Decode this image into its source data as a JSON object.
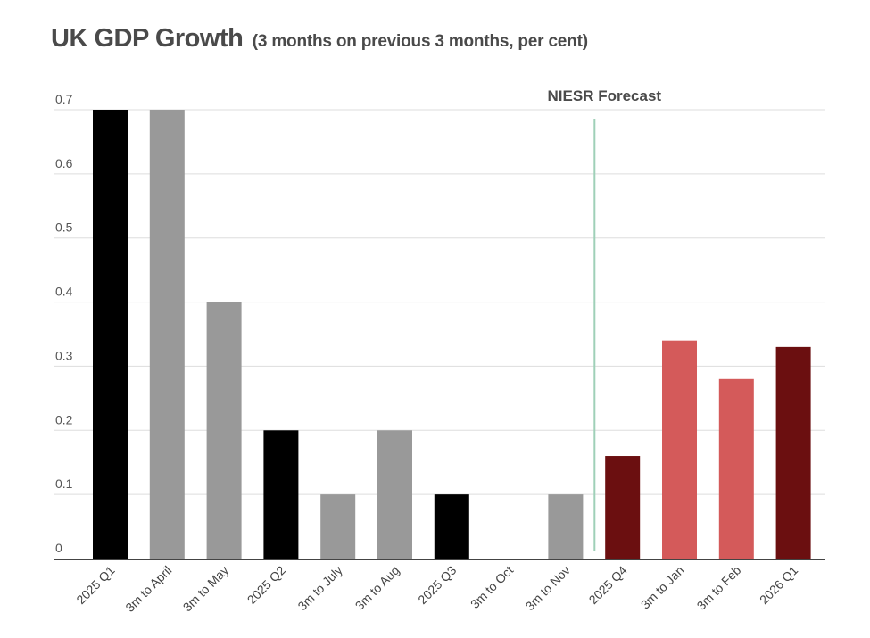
{
  "chart_data": {
    "type": "bar",
    "title": "UK GDP Growth",
    "subtitle": "(3 months on previous 3 months, per cent)",
    "xlabel": "",
    "ylabel": "",
    "ylim": [
      0,
      0.7
    ],
    "yticks": [
      0,
      0.1,
      0.2,
      0.3,
      0.4,
      0.5,
      0.6,
      0.7
    ],
    "ytick_labels": [
      "0",
      "0.1",
      "0.2",
      "0.3",
      "0.4",
      "0.5",
      "0.6",
      "0.7"
    ],
    "grid": true,
    "legend": "none",
    "categories": [
      "2025 Q1",
      "3m to April",
      "3m to May",
      "2025 Q2",
      "3m to July",
      "3m to Aug",
      "2025 Q3",
      "3m to Oct",
      "3m to Nov",
      "2025 Q4",
      "3m to Jan",
      "3m to Feb",
      "2026 Q1"
    ],
    "values": [
      0.7,
      0.7,
      0.4,
      0.2,
      0.1,
      0.2,
      0.1,
      0.0,
      0.1,
      0.16,
      0.34,
      0.28,
      0.33
    ],
    "bar_kind": [
      "quarter_outturn",
      "month_outturn",
      "month_outturn",
      "quarter_outturn",
      "month_outturn",
      "month_outturn",
      "quarter_outturn",
      "month_outturn",
      "month_outturn",
      "quarter_forecast",
      "month_forecast",
      "month_forecast",
      "quarter_forecast"
    ],
    "colors": {
      "quarter_outturn": "#000000",
      "month_outturn": "#999999",
      "quarter_forecast": "#6b0f10",
      "month_forecast": "#d45a5a",
      "forecast_divider": "#9fd0b8",
      "gridline": "#dddddd",
      "axis": "#444444"
    },
    "annotations": [
      {
        "text": "NIESR Forecast",
        "position": "divider between 3m to Nov and 2025 Q4"
      }
    ],
    "forecast_start_category": "2025 Q4"
  }
}
